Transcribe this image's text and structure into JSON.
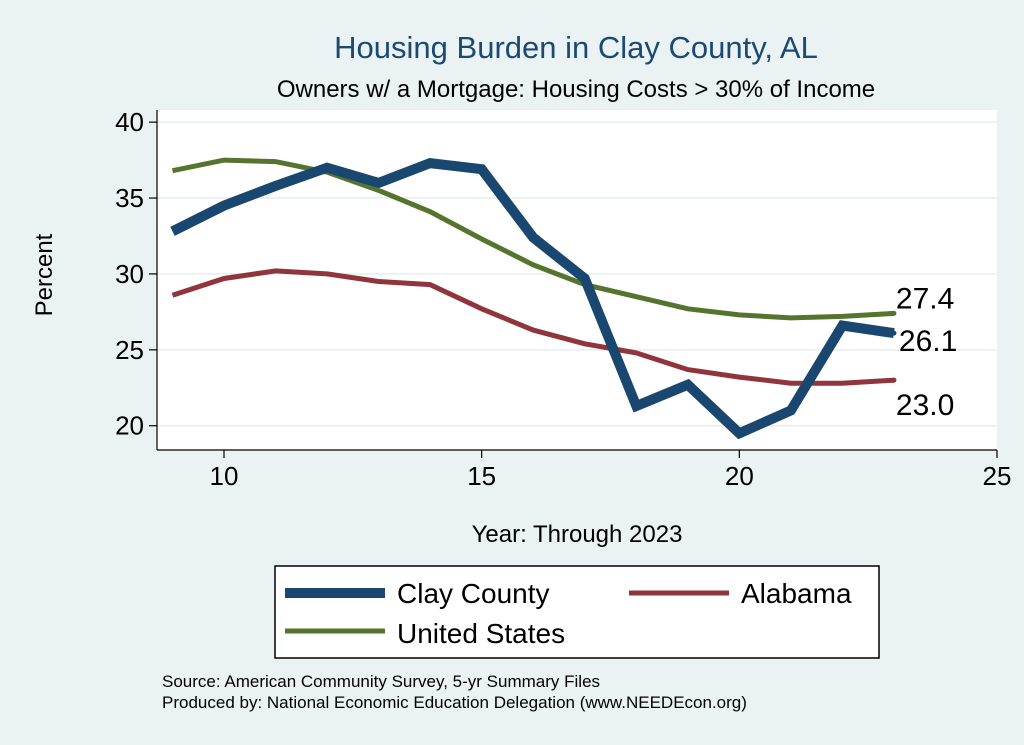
{
  "chart_data": {
    "type": "line",
    "title": "Housing Burden in Clay County, AL",
    "subtitle": "Owners w/ a Mortgage: Housing Costs > 30% of Income",
    "xlabel": "Year: Through 2023",
    "ylabel": "Percent",
    "xlim": [
      8.7,
      25
    ],
    "ylim": [
      18.4,
      40.8
    ],
    "xticks": [
      10,
      15,
      20,
      25
    ],
    "yticks": [
      20,
      25,
      30,
      35,
      40
    ],
    "x": [
      9,
      10,
      11,
      12,
      13,
      14,
      15,
      16,
      17,
      18,
      19,
      20,
      21,
      22,
      23
    ],
    "series": [
      {
        "name": "Clay County",
        "color": "#1a476f",
        "values": [
          32.8,
          34.5,
          35.8,
          37.0,
          36.0,
          37.3,
          36.9,
          32.4,
          29.7,
          21.3,
          22.7,
          19.5,
          21.0,
          26.6,
          26.1
        ],
        "end_label": "26.1"
      },
      {
        "name": "Alabama",
        "color": "#90353b",
        "values": [
          28.6,
          29.7,
          30.2,
          30.0,
          29.5,
          29.3,
          27.7,
          26.3,
          25.4,
          24.8,
          23.7,
          23.2,
          22.8,
          22.8,
          23.0
        ],
        "end_label": "23.0"
      },
      {
        "name": "United States",
        "color": "#55752f",
        "values": [
          36.8,
          37.5,
          37.4,
          36.7,
          35.5,
          34.1,
          32.3,
          30.6,
          29.3,
          28.5,
          27.7,
          27.3,
          27.1,
          27.2,
          27.4
        ],
        "end_label": "27.4"
      }
    ],
    "legend": {
      "position": "bottom",
      "items": [
        "Clay County",
        "Alabama",
        "United States"
      ]
    },
    "source_lines": [
      "Source: American Community Survey, 5-yr Summary Files",
      "Produced by: National Economic Education Delegation (www.NEEDEcon.org)"
    ]
  }
}
